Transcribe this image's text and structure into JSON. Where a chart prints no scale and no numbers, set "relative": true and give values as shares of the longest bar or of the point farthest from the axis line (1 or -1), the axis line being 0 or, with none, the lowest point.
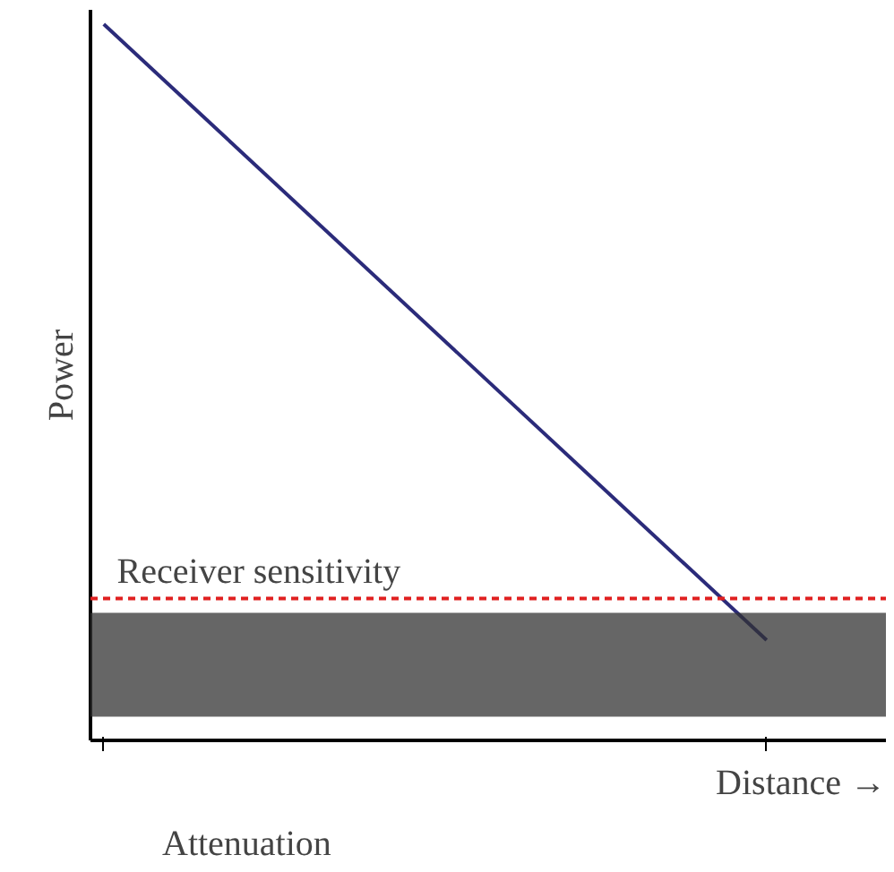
{
  "chart_data": {
    "type": "line",
    "relative": true,
    "xlabel": "Distance →",
    "ylabel": "Power",
    "annotations": [
      "Attenuation"
    ],
    "categories": [
      null,
      null
    ],
    "series": [
      {
        "color": "#2b2b7a",
        "values": [
          1,
          0.14
        ]
      }
    ],
    "ref_lines": [
      {
        "axis": "y",
        "value": 0.198,
        "label": "Receiver sensitivity",
        "color": "#e02020",
        "line_style": "dashed"
      }
    ],
    "bands": [
      {
        "axis": "y",
        "from": 0.033,
        "to": 0.178,
        "color": "#333333"
      }
    ],
    "tick_labels": false,
    "grid": false
  }
}
